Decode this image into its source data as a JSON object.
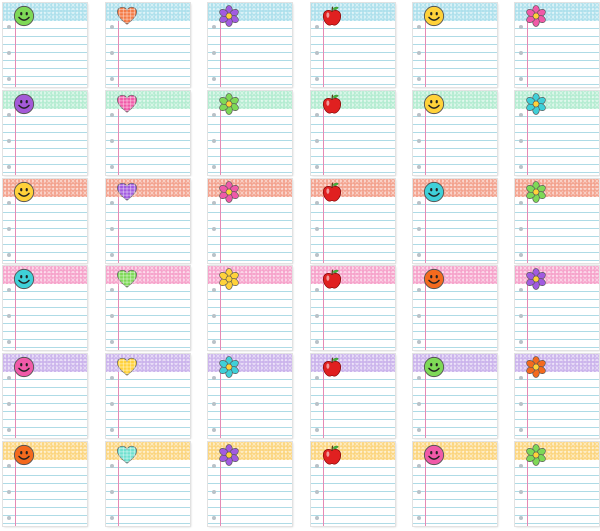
{
  "colors": {
    "band_palette": {
      "blue": "#aee0ec",
      "green": "#b4ecd1",
      "coral": "#f3a28e",
      "pink": "#f6a3cb",
      "purple": "#cbb4ec",
      "yellow": "#fbd57f"
    },
    "ruled_line": "#aedbe6",
    "margin_line": "#e58ab5"
  },
  "rows": [
    {
      "band": "blue",
      "cards": [
        {
          "icon": "smiley-icon",
          "color": "#7ed957"
        },
        {
          "icon": "heart-icon",
          "color": "#f47a45"
        },
        {
          "icon": "flower-icon",
          "color": "#a15be0"
        },
        {
          "icon": "apple-icon",
          "color": "#e02020"
        },
        {
          "icon": "smiley-icon",
          "color": "#ffd23a"
        },
        {
          "icon": "flower-icon",
          "color": "#f05aa8"
        }
      ]
    },
    {
      "band": "green",
      "cards": [
        {
          "icon": "smiley-icon",
          "color": "#a45ad8"
        },
        {
          "icon": "heart-icon",
          "color": "#f05aa8"
        },
        {
          "icon": "flower-icon",
          "color": "#7ed957"
        },
        {
          "icon": "apple-icon",
          "color": "#e02020"
        },
        {
          "icon": "smiley-icon",
          "color": "#ffd23a"
        },
        {
          "icon": "flower-icon",
          "color": "#3fd0d8"
        }
      ]
    },
    {
      "band": "coral",
      "cards": [
        {
          "icon": "smiley-icon",
          "color": "#ffd23a"
        },
        {
          "icon": "heart-icon",
          "color": "#a15be0"
        },
        {
          "icon": "flower-icon",
          "color": "#f05aa8"
        },
        {
          "icon": "apple-icon",
          "color": "#e02020"
        },
        {
          "icon": "smiley-icon",
          "color": "#3fd0d8"
        },
        {
          "icon": "flower-icon",
          "color": "#7ed957"
        }
      ]
    },
    {
      "band": "pink",
      "cards": [
        {
          "icon": "smiley-icon",
          "color": "#3fd0d8"
        },
        {
          "icon": "heart-icon",
          "color": "#7ed957"
        },
        {
          "icon": "flower-icon",
          "color": "#ffd23a"
        },
        {
          "icon": "apple-icon",
          "color": "#e02020"
        },
        {
          "icon": "smiley-icon",
          "color": "#f46a1e"
        },
        {
          "icon": "flower-icon",
          "color": "#a15be0"
        }
      ]
    },
    {
      "band": "purple",
      "cards": [
        {
          "icon": "smiley-icon",
          "color": "#f05aa8"
        },
        {
          "icon": "heart-icon",
          "color": "#ffd23a"
        },
        {
          "icon": "flower-icon",
          "color": "#3fd0d8"
        },
        {
          "icon": "apple-icon",
          "color": "#e02020"
        },
        {
          "icon": "smiley-icon",
          "color": "#7ed957"
        },
        {
          "icon": "flower-icon",
          "color": "#f46a1e"
        }
      ]
    },
    {
      "band": "yellow",
      "cards": [
        {
          "icon": "smiley-icon",
          "color": "#f46a1e"
        },
        {
          "icon": "heart-icon",
          "color": "#6fe0cf"
        },
        {
          "icon": "flower-icon",
          "color": "#a15be0"
        },
        {
          "icon": "apple-icon",
          "color": "#e02020"
        },
        {
          "icon": "smiley-icon",
          "color": "#f05aa8"
        },
        {
          "icon": "flower-icon",
          "color": "#7ed957"
        }
      ]
    }
  ]
}
